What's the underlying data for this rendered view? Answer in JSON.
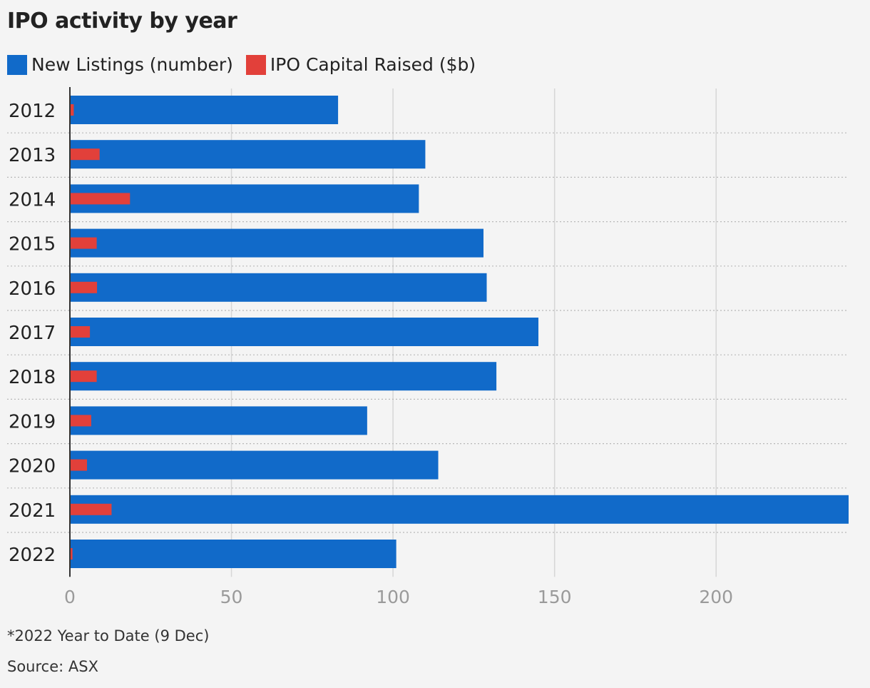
{
  "title": "IPO activity by year",
  "legend": {
    "items": [
      {
        "label": "New Listings (number)",
        "color": "#116ac9"
      },
      {
        "label": "IPO Capital Raised ($b)",
        "color": "#e2403a"
      }
    ]
  },
  "footnote": "*2022 Year to Date (9 Dec)",
  "source": "Source: ASX",
  "chart_data": {
    "type": "bar",
    "orientation": "horizontal",
    "categories": [
      "2012",
      "2013",
      "2014",
      "2015",
      "2016",
      "2017",
      "2018",
      "2019",
      "2020",
      "2021",
      "2022"
    ],
    "series": [
      {
        "name": "New Listings (number)",
        "color": "#116ac9",
        "values": [
          83,
          110,
          108,
          128,
          129,
          145,
          132,
          92,
          114,
          241,
          101
        ]
      },
      {
        "name": "IPO Capital Raised ($b)",
        "color": "#e2403a",
        "values": [
          1.2,
          9.2,
          18.6,
          8.3,
          8.4,
          6.2,
          8.3,
          6.6,
          5.3,
          12.9,
          0.8
        ]
      }
    ],
    "x_ticks": [
      "0",
      "50",
      "100",
      "150",
      "200"
    ],
    "xlim": [
      0,
      241
    ],
    "grid": true
  }
}
